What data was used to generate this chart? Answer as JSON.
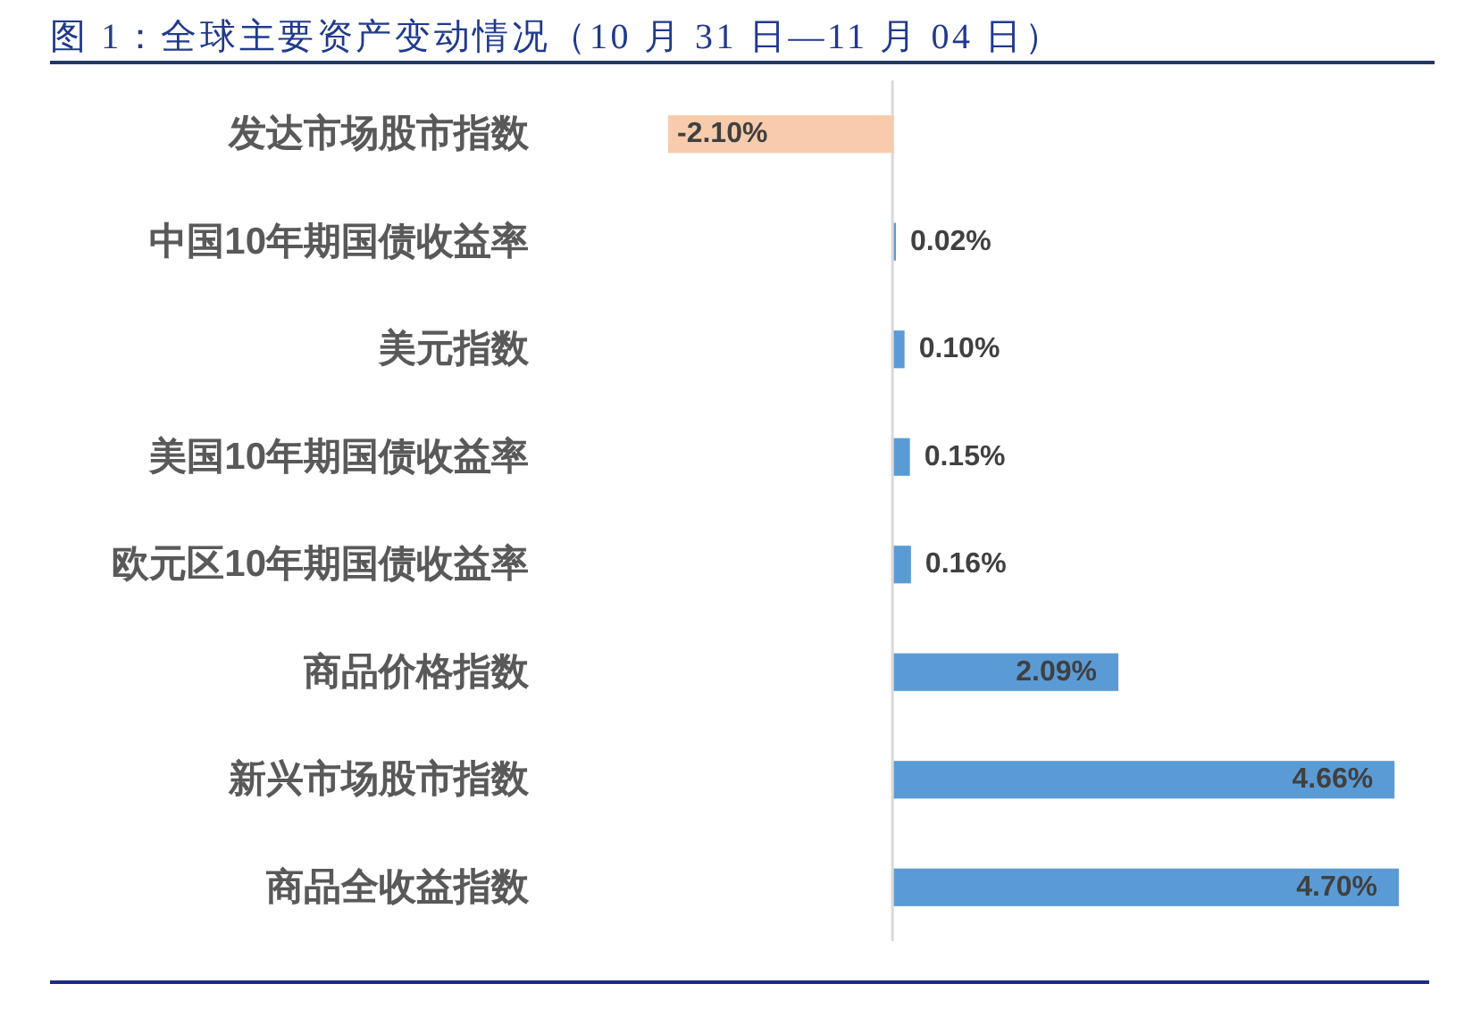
{
  "chart_data": {
    "type": "bar",
    "orientation": "horizontal",
    "title": "图 1：全球主要资产变动情况（10 月 31 日—11 月 04 日）",
    "categories": [
      "发达市场股市指数",
      "中国10年期国债收益率",
      "美元指数",
      "美国10年期国债收益率",
      "欧元区10年期国债收益率",
      "商品价格指数",
      "新兴市场股市指数",
      "商品全收益指数"
    ],
    "values": [
      -2.1,
      0.02,
      0.1,
      0.15,
      0.16,
      2.09,
      4.66,
      4.7
    ],
    "colors": [
      "#f8cbad",
      "#5b9bd5",
      "#5b9bd5",
      "#5b9bd5",
      "#5b9bd5",
      "#5b9bd5",
      "#5b9bd5",
      "#5b9bd5"
    ],
    "value_labels": [
      "-2.10%",
      "0.02%",
      "0.10%",
      "0.15%",
      "0.16%",
      "2.09%",
      "4.66%",
      "4.70%"
    ],
    "tick_labels": "y"
  }
}
